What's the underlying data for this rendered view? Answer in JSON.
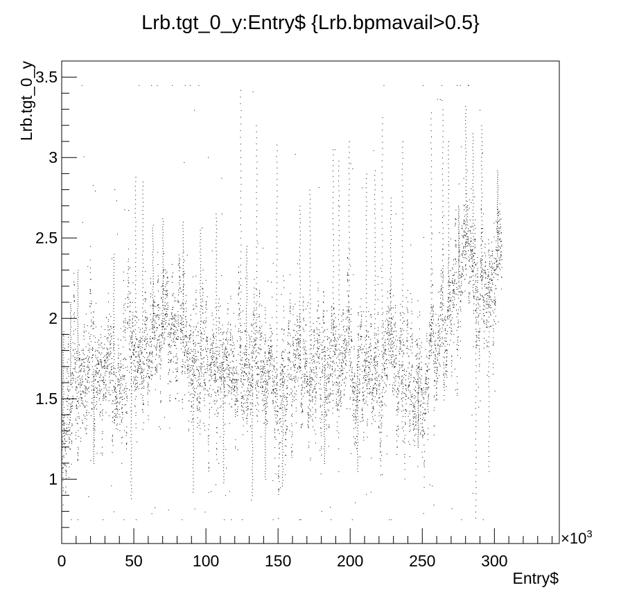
{
  "chart_data": {
    "type": "scatter",
    "title": "Lrb.tgt_0_y:Entry$ {Lrb.bpmavail>0.5}",
    "xlabel": "Entry$",
    "ylabel": "Lrb.tgt_0_y",
    "x_multiplier_label": "×10",
    "x_multiplier_exp": "3",
    "xlim": [
      0,
      345
    ],
    "ylim": [
      0.6,
      3.6
    ],
    "x_ticks": [
      {
        "value": 0,
        "label": "0"
      },
      {
        "value": 50,
        "label": "50"
      },
      {
        "value": 100,
        "label": "100"
      },
      {
        "value": 150,
        "label": "150"
      },
      {
        "value": 200,
        "label": "200"
      },
      {
        "value": 250,
        "label": "250"
      },
      {
        "value": 300,
        "label": "300"
      }
    ],
    "y_ticks": [
      {
        "value": 1,
        "label": "1"
      },
      {
        "value": 1.5,
        "label": "1.5"
      },
      {
        "value": 2,
        "label": "2"
      },
      {
        "value": 2.5,
        "label": "2.5"
      },
      {
        "value": 3,
        "label": "3"
      },
      {
        "value": 3.5,
        "label": "3.5"
      }
    ],
    "grid": false,
    "legend": "none",
    "marker_color": "#000000",
    "x_range_data": [
      0,
      305
    ],
    "trend": [
      [
        0,
        1.2
      ],
      [
        5,
        1.55
      ],
      [
        10,
        1.75
      ],
      [
        20,
        1.68
      ],
      [
        30,
        1.7
      ],
      [
        40,
        1.62
      ],
      [
        50,
        1.75
      ],
      [
        60,
        1.9
      ],
      [
        70,
        1.95
      ],
      [
        80,
        1.85
      ],
      [
        90,
        1.8
      ],
      [
        100,
        1.75
      ],
      [
        110,
        1.72
      ],
      [
        120,
        1.78
      ],
      [
        130,
        1.7
      ],
      [
        140,
        1.68
      ],
      [
        150,
        1.65
      ],
      [
        160,
        1.68
      ],
      [
        170,
        1.66
      ],
      [
        180,
        1.7
      ],
      [
        190,
        1.74
      ],
      [
        200,
        1.78
      ],
      [
        210,
        1.76
      ],
      [
        220,
        1.72
      ],
      [
        230,
        1.72
      ],
      [
        240,
        1.74
      ],
      [
        250,
        1.62
      ],
      [
        260,
        1.9
      ],
      [
        270,
        2.05
      ],
      [
        280,
        2.45
      ],
      [
        290,
        2.2
      ],
      [
        300,
        2.35
      ],
      [
        305,
        2.45
      ]
    ],
    "spread": [
      [
        0,
        0.25
      ],
      [
        20,
        0.35
      ],
      [
        50,
        0.45
      ],
      [
        80,
        0.45
      ],
      [
        110,
        0.35
      ],
      [
        140,
        0.3
      ],
      [
        170,
        0.3
      ],
      [
        200,
        0.35
      ],
      [
        230,
        0.3
      ],
      [
        260,
        0.35
      ],
      [
        280,
        0.45
      ],
      [
        305,
        0.45
      ]
    ],
    "spikes": [
      [
        1,
        1.92
      ],
      [
        6,
        2.1
      ],
      [
        11,
        2.3
      ],
      [
        22,
        1.1
      ],
      [
        36,
        2.4
      ],
      [
        48,
        0.88
      ],
      [
        51,
        2.88
      ],
      [
        56,
        2.85
      ],
      [
        63,
        2.58
      ],
      [
        70,
        2.62
      ],
      [
        84,
        2.6
      ],
      [
        91,
        0.92
      ],
      [
        96,
        2.55
      ],
      [
        107,
        2.65
      ],
      [
        112,
        0.98
      ],
      [
        124,
        3.42
      ],
      [
        128,
        2.45
      ],
      [
        132,
        0.9
      ],
      [
        135,
        3.2
      ],
      [
        141,
        1.0
      ],
      [
        149,
        3.08
      ],
      [
        153,
        0.96
      ],
      [
        165,
        2.7
      ],
      [
        172,
        2.8
      ],
      [
        182,
        1.1
      ],
      [
        188,
        3.05
      ],
      [
        192,
        2.98
      ],
      [
        199,
        3.1
      ],
      [
        205,
        1.05
      ],
      [
        211,
        2.9
      ],
      [
        217,
        2.92
      ],
      [
        222,
        3.25
      ],
      [
        228,
        2.75
      ],
      [
        236,
        3.1
      ],
      [
        247,
        1.2
      ],
      [
        256,
        3.28
      ],
      [
        264,
        3.3
      ],
      [
        268,
        3.1
      ],
      [
        275,
        2.7
      ],
      [
        280,
        3.32
      ],
      [
        285,
        3.15
      ],
      [
        287,
        0.76
      ],
      [
        291,
        3.2
      ],
      [
        296,
        1.05
      ],
      [
        302,
        2.92
      ]
    ],
    "n_points": 7000,
    "seed": 12345
  }
}
